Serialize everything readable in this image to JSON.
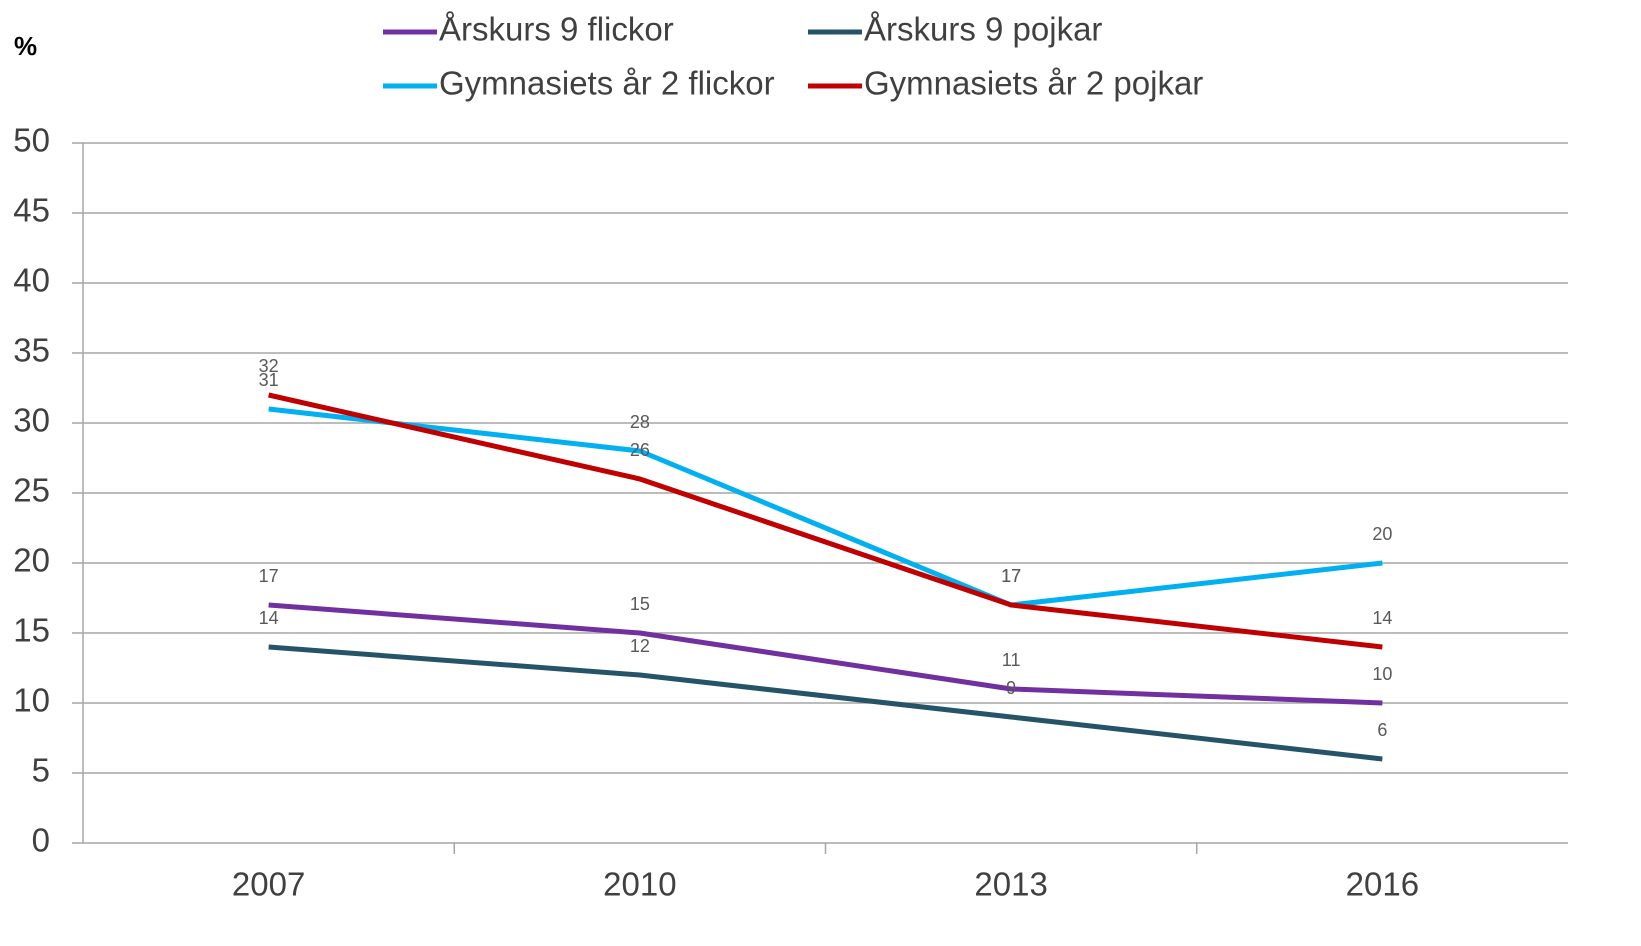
{
  "chart_data": {
    "type": "line",
    "y_label": "%",
    "categories": [
      "2007",
      "2010",
      "2013",
      "2016"
    ],
    "series": [
      {
        "name": "Årskurs 9 flickor",
        "color": "#7030a0",
        "values": [
          17,
          15,
          11,
          10
        ]
      },
      {
        "name": "Årskurs 9 pojkar",
        "color": "#255468",
        "values": [
          14,
          12,
          9,
          6
        ]
      },
      {
        "name": "Gymnasiets år 2 flickor",
        "color": "#00b0f0",
        "values": [
          31,
          28,
          17,
          20
        ]
      },
      {
        "name": "Gymnasiets år 2 pojkar",
        "color": "#c00000",
        "values": [
          32,
          26,
          17,
          14
        ]
      }
    ],
    "ylim": [
      0,
      50
    ],
    "yticks": [
      0,
      5,
      10,
      15,
      20,
      25,
      30,
      35,
      40,
      45,
      50
    ],
    "grid": true,
    "data_labels": true,
    "legend": "top"
  }
}
